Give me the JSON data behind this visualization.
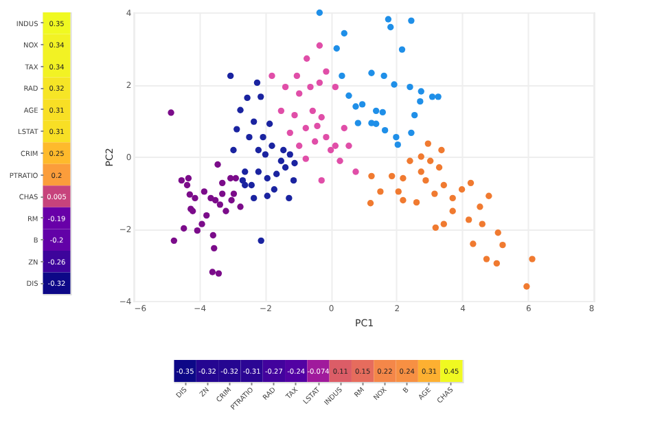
{
  "chart_data": [
    {
      "type": "heatmap",
      "categories": [
        null
      ],
      "y_categories": [
        "INDUS",
        "NOX",
        "TAX",
        "RAD",
        "AGE",
        "LSTAT",
        "CRIM",
        "PTRATIO",
        "CHAS",
        "RM",
        "B",
        "ZN",
        "DIS"
      ],
      "cells": [
        [
          0.35
        ],
        [
          0.34
        ],
        [
          0.34
        ],
        [
          0.32
        ],
        [
          0.31
        ],
        [
          0.31
        ],
        [
          0.25
        ],
        [
          0.2
        ],
        [
          0.005
        ],
        [
          -0.19
        ],
        [
          -0.2
        ],
        [
          -0.26
        ],
        [
          -0.32
        ]
      ],
      "data_labels": true
    },
    {
      "type": "scatter",
      "xlabel": "PC1",
      "ylabel": "PC2",
      "xlim": [
        -6,
        8
      ],
      "xticks": [
        -6,
        -4,
        -2,
        0,
        2,
        4,
        6,
        8
      ],
      "ylim": [
        -4,
        4
      ],
      "yticks": [
        -4,
        -2,
        0,
        2,
        4
      ],
      "grid": true,
      "legend": false,
      "marker": "circle",
      "series": [
        {
          "color": "#7b0c8a",
          "x": [
            -4.86,
            -4.77,
            -4.33,
            -4.37,
            -4.29,
            -4.47,
            -4.2,
            -4.06,
            -3.92,
            -3.85,
            -3.65,
            -3.58,
            -3.55,
            -3.6,
            -3.41,
            -3.44,
            -3.3,
            -3.37,
            -3.19,
            -3.05,
            -2.95,
            -2.75,
            -3.78,
            -4.13,
            -4.26,
            -4.54,
            -3.02,
            -2.89,
            -3.3,
            -3.51
          ],
          "values": [
            1.22,
            -2.33,
            -0.6,
            -0.79,
            -1.05,
            -1.99,
            -1.51,
            -2.05,
            -1.87,
            -0.97,
            -1.15,
            -2.18,
            -2.54,
            -3.2,
            -3.24,
            -0.22,
            -0.73,
            -1.33,
            -1.51,
            -0.6,
            -1.03,
            -1.39,
            -1.63,
            -1.15,
            -1.45,
            -0.66,
            -1.21,
            -0.6,
            -1.03,
            -1.21
          ]
        },
        {
          "color": "#1a23a0",
          "x": [
            -3.05,
            -2.12,
            -2.24,
            -2.54,
            -2.13,
            -2.75,
            -2.34,
            -2.86,
            -2.96,
            -2.48,
            -2.06,
            -2.2,
            -1.86,
            -1.79,
            -1.44,
            -1.24,
            -1.1,
            -1.38,
            -1.65,
            -1.93,
            -2.2,
            -2.61,
            -2.68,
            -2.41,
            -2.34,
            -1.93,
            -1.72,
            -1.27,
            -1.13,
            -1.51,
            -2.61,
            -1.99
          ],
          "values": [
            2.24,
            -2.33,
            2.05,
            1.63,
            1.66,
            1.29,
            0.97,
            0.76,
            0.18,
            0.54,
            0.54,
            0.18,
            0.91,
            0.3,
            0.18,
            0.06,
            -0.18,
            -0.3,
            -0.48,
            -0.6,
            -0.42,
            -0.42,
            -0.66,
            -0.79,
            -1.15,
            -1.09,
            -0.91,
            -1.15,
            -0.66,
            -0.12,
            -0.79,
            0.06
          ]
        },
        {
          "color": "#e04ea8",
          "x": [
            -1.79,
            -1.38,
            -1.03,
            -0.73,
            -0.34,
            -0.14,
            -0.96,
            -0.62,
            -0.34,
            0.14,
            -1.51,
            -1.1,
            -0.55,
            -0.28,
            -0.76,
            -1.24,
            -0.96,
            -0.48,
            -0.14,
            0.14,
            0.41,
            0.55,
            0.28,
            0.76,
            -0.28,
            -0.76,
            0,
            -0.41
          ],
          "values": [
            2.24,
            1.93,
            2.24,
            2.72,
            3.08,
            2.36,
            1.75,
            1.93,
            2.05,
            1.93,
            1.27,
            1.15,
            1.27,
            1.09,
            0.79,
            0.66,
            0.3,
            0.42,
            0.54,
            0.3,
            0.79,
            0.3,
            -0.12,
            -0.42,
            -0.66,
            -0.06,
            0.18,
            0.85
          ]
        },
        {
          "color": "#1f8fe8",
          "x": [
            -0.34,
            0.41,
            0.18,
            1.75,
            1.82,
            2.45,
            2.17,
            0.34,
            1.24,
            1.62,
            1.93,
            2.41,
            2.75,
            3.09,
            3.27,
            0.55,
            0.76,
            0.96,
            0.83,
            1.38,
            1.58,
            1.38,
            1.65,
            1.99,
            2.04,
            2.55,
            2.45,
            2.72,
            1.24
          ],
          "values": [
            3.99,
            3.42,
            3.0,
            3.81,
            3.59,
            3.77,
            2.97,
            2.24,
            2.32,
            2.24,
            2.0,
            1.93,
            1.81,
            1.66,
            1.66,
            1.69,
            1.39,
            1.45,
            0.93,
            1.27,
            1.23,
            0.91,
            0.73,
            0.54,
            0.33,
            1.15,
            0.66,
            1.53,
            0.93
          ]
        },
        {
          "color": "#f07a30",
          "x": [
            1.24,
            1.21,
            1.51,
            1.86,
            2.06,
            2.2,
            2.61,
            2.41,
            2.75,
            3.03,
            3.3,
            2.96,
            3.37,
            2.89,
            3.16,
            3.44,
            3.71,
            3.99,
            4.26,
            4.81,
            4.54,
            4.2,
            4.61,
            5.09,
            5.23,
            4.33,
            4.74,
            5.05,
            6.13,
            5.96,
            3.19,
            3.44,
            3.71,
            2.75,
            2.2
          ],
          "values": [
            -0.54,
            -1.29,
            -0.97,
            -0.54,
            -0.97,
            -1.21,
            -1.27,
            -0.12,
            0,
            -0.12,
            -0.3,
            0.36,
            0.18,
            -0.66,
            -1.03,
            -0.79,
            -1.15,
            -0.91,
            -0.73,
            -1.09,
            -1.39,
            -1.75,
            -1.87,
            -2.11,
            -2.45,
            -2.42,
            -2.84,
            -2.96,
            -2.84,
            -3.6,
            -1.97,
            -1.87,
            -1.51,
            -0.42,
            -0.6
          ]
        }
      ]
    },
    {
      "type": "heatmap",
      "categories": [
        "DIS",
        "ZN",
        "CRIM",
        "PTRATIO",
        "RAD",
        "TAX",
        "LSTAT",
        "INDUS",
        "RM",
        "NOX",
        "B",
        "AGE",
        "CHAS"
      ],
      "y_categories": [
        null
      ],
      "cells": [
        [
          -0.35,
          -0.32,
          -0.32,
          -0.31,
          -0.27,
          -0.24,
          -0.074,
          0.11,
          0.15,
          0.22,
          0.24,
          0.31,
          0.45
        ]
      ],
      "data_labels": true
    }
  ]
}
